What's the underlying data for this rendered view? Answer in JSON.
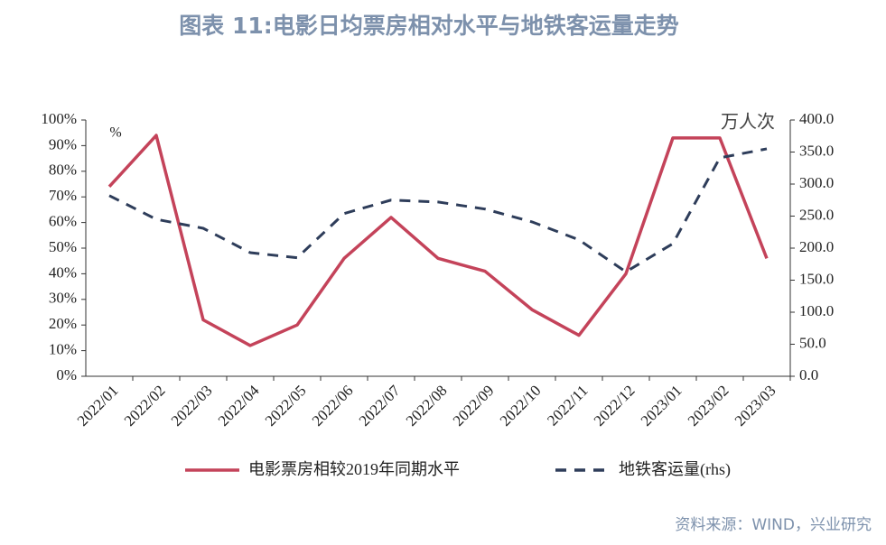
{
  "chart_data": {
    "type": "line",
    "title": "图表 11:电影日均票房相对水平与地铁客运量走势",
    "source": "资料来源：WIND，兴业研究",
    "ylabel": "%",
    "y2label": "万人次",
    "categories": [
      "2022/01",
      "2022/02",
      "2022/03",
      "2022/04",
      "2022/05",
      "2022/06",
      "2022/07",
      "2022/08",
      "2022/09",
      "2022/10",
      "2022/11",
      "2022/12",
      "2023/01",
      "2023/02",
      "2023/03"
    ],
    "series": [
      {
        "name": "电影票房相较2019年同期水平",
        "color": "#c4435a",
        "dash": false,
        "values": [
          74,
          94,
          22,
          12,
          20,
          46,
          62,
          46,
          41,
          26,
          16,
          40,
          93,
          93,
          46
        ]
      },
      {
        "name": "地铁客运量(rhs)",
        "color": "#2e3d5a",
        "dash": true,
        "axis": "y2",
        "values": [
          282,
          245,
          231,
          193,
          185,
          254,
          275,
          272,
          261,
          241,
          213,
          163,
          207,
          341,
          355
        ]
      }
    ],
    "ylim": [
      0,
      100
    ],
    "yticks": [
      {
        "value": 0,
        "label": "0%"
      },
      {
        "value": 10,
        "label": "10%"
      },
      {
        "value": 20,
        "label": "20%"
      },
      {
        "value": 30,
        "label": "30%"
      },
      {
        "value": 40,
        "label": "40%"
      },
      {
        "value": 50,
        "label": "50%"
      },
      {
        "value": 60,
        "label": "60%"
      },
      {
        "value": 70,
        "label": "70%"
      },
      {
        "value": 80,
        "label": "80%"
      },
      {
        "value": 90,
        "label": "90%"
      },
      {
        "value": 100,
        "label": "100%"
      }
    ],
    "y2lim": [
      0,
      400
    ],
    "y2ticks": [
      {
        "value": 0,
        "label": "0.0"
      },
      {
        "value": 50,
        "label": "50.0"
      },
      {
        "value": 100,
        "label": "100.0"
      },
      {
        "value": 150,
        "label": "150.0"
      },
      {
        "value": 200,
        "label": "200.0"
      },
      {
        "value": 250,
        "label": "250.0"
      },
      {
        "value": 300,
        "label": "300.0"
      },
      {
        "value": 350,
        "label": "350.0"
      },
      {
        "value": 400,
        "label": "400.0"
      }
    ],
    "grid": false,
    "legend": "bottom"
  }
}
